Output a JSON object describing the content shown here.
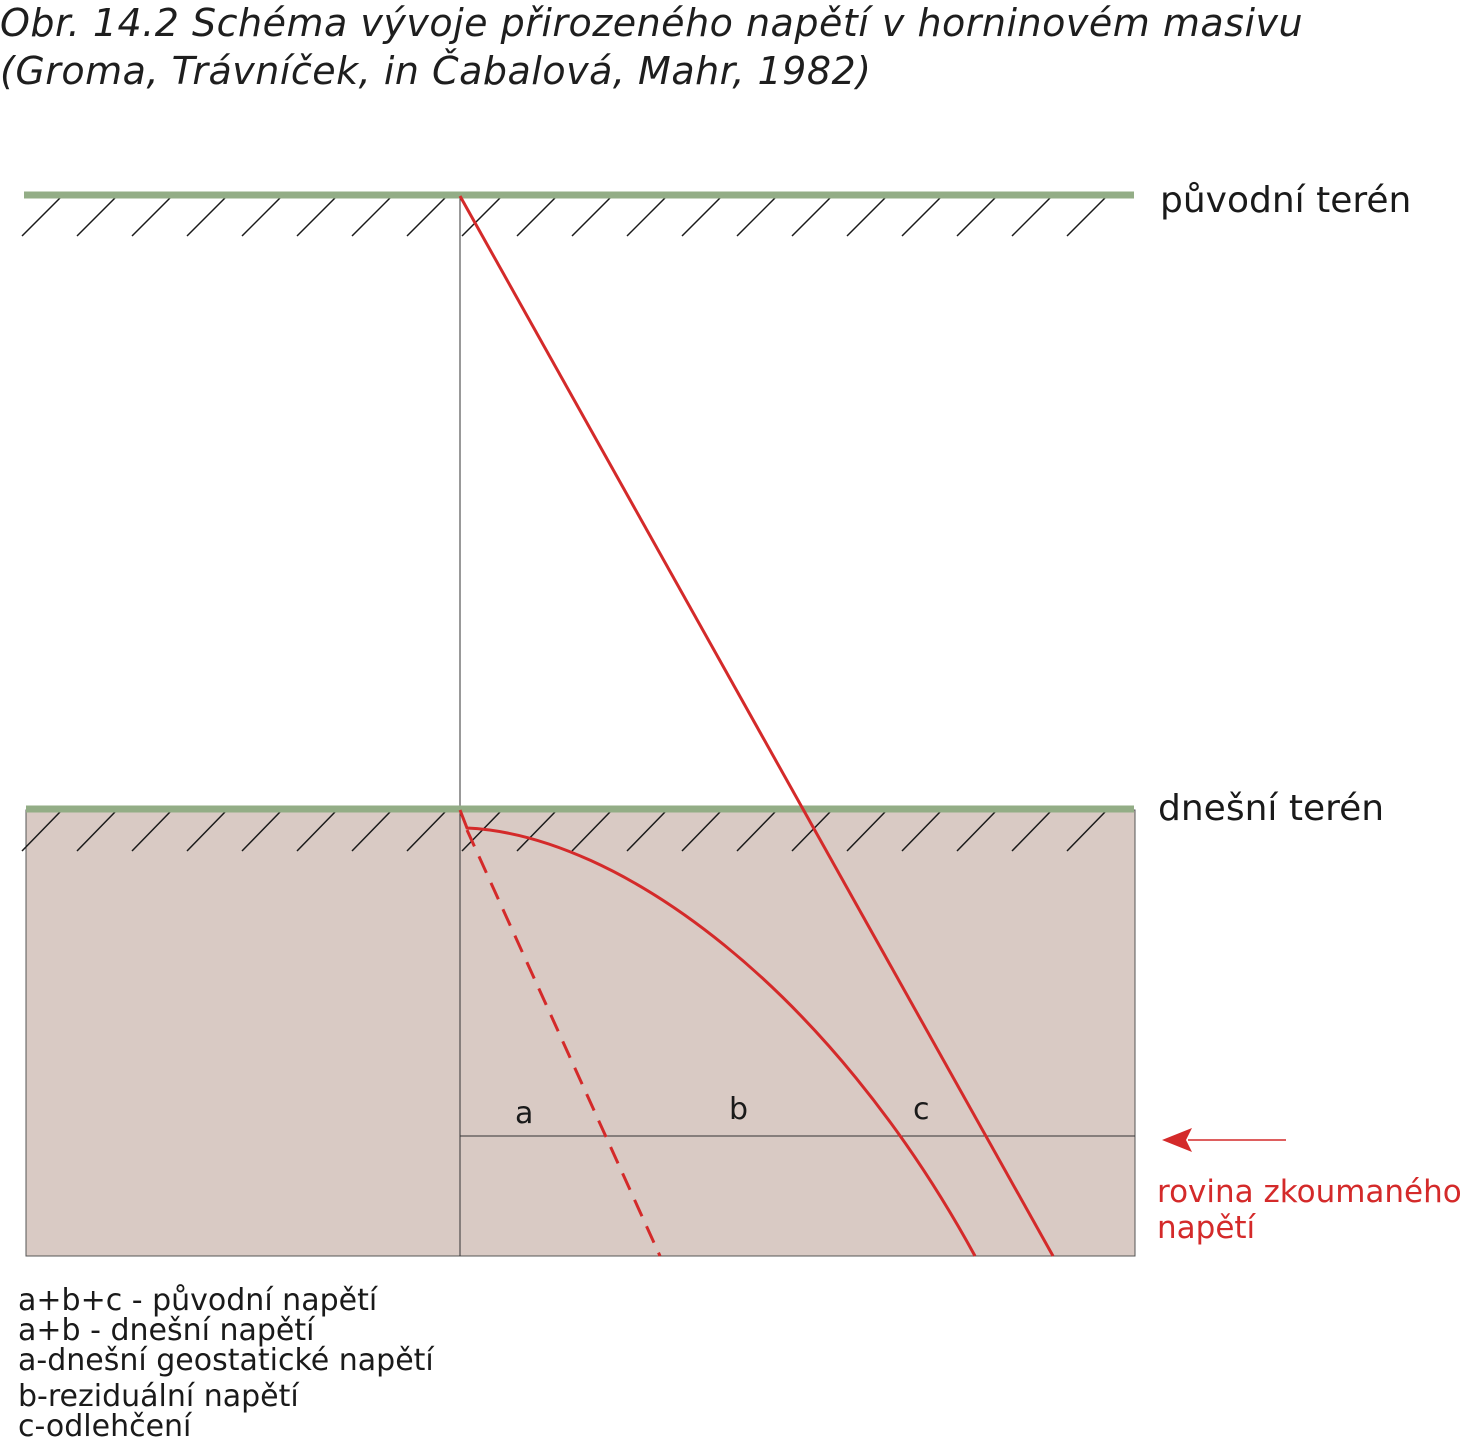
{
  "title": {
    "line1": "Obr. 14.2 Schéma vývoje přirozeného napětí v horninovém masivu",
    "line2": "(Groma, Trávníček, in Čabalová, Mahr, 1982)"
  },
  "labels": {
    "original_terrain": "původní terén",
    "current_terrain": "dnešní terén",
    "a": "a",
    "b": "b",
    "c": "c",
    "plane_line1": "rovina zkoumaného",
    "plane_line2": "napětí"
  },
  "legend": [
    "a+b+c - původní napětí",
    "a+b - dnešní napětí",
    "a-dnešní geostatické napětí",
    "b-reziduální napětí",
    "c-odlehčení"
  ],
  "colors": {
    "terrain_line": "#93ad86",
    "rock_fill": "#d9cac4",
    "stress_line": "#d42a2a",
    "hatch": "#1a1a1a"
  }
}
